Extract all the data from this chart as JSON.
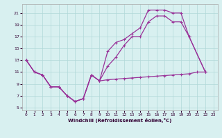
{
  "xlabel": "Windchill (Refroidissement éolien,°C)",
  "bg_color": "#d8f0f0",
  "grid_color": "#b0d8d8",
  "line_color": "#993399",
  "xlim": [
    -0.5,
    23.5
  ],
  "ylim": [
    4.5,
    22.5
  ],
  "xticks": [
    0,
    1,
    2,
    3,
    4,
    5,
    6,
    7,
    8,
    9,
    10,
    11,
    12,
    13,
    14,
    15,
    16,
    17,
    18,
    19,
    20,
    21,
    22,
    23
  ],
  "yticks": [
    5,
    7,
    9,
    11,
    13,
    15,
    17,
    19,
    21
  ],
  "line1_x": [
    0,
    1,
    2,
    3,
    4,
    5,
    6,
    7,
    8,
    9,
    10,
    11,
    12,
    13,
    14,
    15,
    16,
    17,
    18,
    19,
    20,
    21,
    22
  ],
  "line1_y": [
    13,
    11,
    10.5,
    8.5,
    8.5,
    7.0,
    6.0,
    6.5,
    10.5,
    9.5,
    9.7,
    9.8,
    9.9,
    10.0,
    10.1,
    10.2,
    10.3,
    10.4,
    10.5,
    10.6,
    10.7,
    11.0,
    11.0
  ],
  "line2_x": [
    0,
    1,
    2,
    3,
    4,
    5,
    6,
    7,
    8,
    9,
    10,
    11,
    12,
    13,
    14,
    15,
    16,
    17,
    18,
    19,
    20,
    22
  ],
  "line2_y": [
    13,
    11,
    10.5,
    8.5,
    8.5,
    7.0,
    6.0,
    6.5,
    10.5,
    9.5,
    12.0,
    13.5,
    15.5,
    17.0,
    17.0,
    19.5,
    20.5,
    20.5,
    19.5,
    19.5,
    17.0,
    11.0
  ],
  "line3_x": [
    0,
    1,
    2,
    3,
    4,
    5,
    6,
    7,
    8,
    9,
    10,
    11,
    12,
    13,
    14,
    15,
    16,
    17,
    18,
    19,
    20,
    22
  ],
  "line3_y": [
    13,
    11,
    10.5,
    8.5,
    8.5,
    7.0,
    6.0,
    6.5,
    10.5,
    9.5,
    14.5,
    16.0,
    16.5,
    17.5,
    18.5,
    21.5,
    21.5,
    21.5,
    21.0,
    21.0,
    17.0,
    11.0
  ]
}
